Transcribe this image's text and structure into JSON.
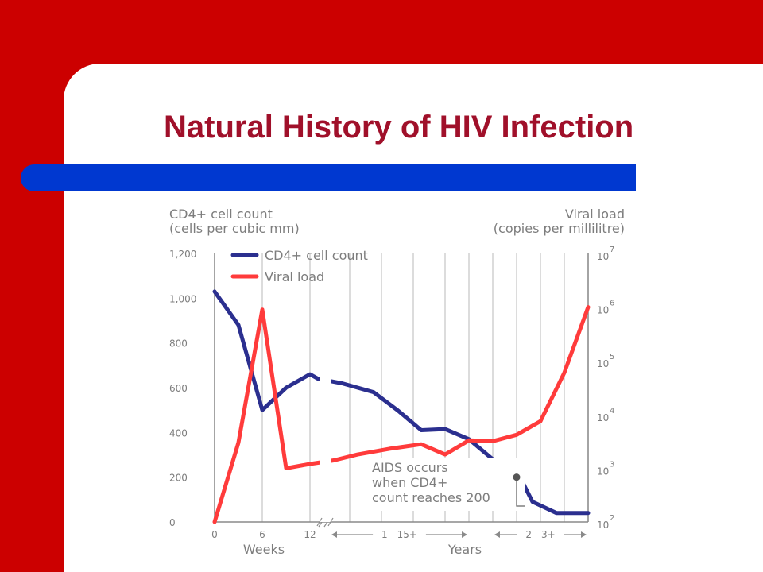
{
  "slide": {
    "title": "Natural History of HIV Infection",
    "colors": {
      "background": "#cc0000",
      "title": "#a0102a",
      "bar": "#0038d0"
    }
  },
  "chart_data": {
    "type": "line",
    "left_axis_label": [
      "CD4+ cell count",
      "(cells per cubic mm)"
    ],
    "right_axis_label": [
      "Viral load",
      "(copies per millilitre)"
    ],
    "left_ticks": [
      "1,200",
      "1,000",
      "800",
      "600",
      "400",
      "200",
      "0"
    ],
    "ylim_left": [
      0,
      1200
    ],
    "right_ticks": [
      {
        "base": "10",
        "exp": "7"
      },
      {
        "base": "10",
        "exp": "6"
      },
      {
        "base": "10",
        "exp": "5"
      },
      {
        "base": "10",
        "exp": "4"
      },
      {
        "base": "10",
        "exp": "3"
      },
      {
        "base": "10",
        "exp": "2"
      }
    ],
    "right_scale": "log",
    "ylim_right": [
      100,
      10000000
    ],
    "x_tick_labels": [
      "0",
      "6",
      "12"
    ],
    "x_range_labels": [
      "1 - 15+",
      "2 - 3+"
    ],
    "x_group_labels": [
      "Weeks",
      "Years"
    ],
    "grid": true,
    "legend": {
      "position": "top-left",
      "entries": [
        "CD4+ cell count",
        "Viral load"
      ]
    },
    "series": [
      {
        "name": "CD4+ cell count",
        "axis": "left",
        "color": "#2b2f8f",
        "points": [
          {
            "x": 0,
            "y": 1030
          },
          {
            "x": 3,
            "y": 880
          },
          {
            "x": 6,
            "y": 500
          },
          {
            "x": 9,
            "y": 600
          },
          {
            "x": 12,
            "y": 660
          },
          {
            "x": 13,
            "y": 640
          },
          {
            "x": 16,
            "y": 620
          },
          {
            "x": 20,
            "y": 580
          },
          {
            "x": 23,
            "y": 500
          },
          {
            "x": 26,
            "y": 410
          },
          {
            "x": 29,
            "y": 415
          },
          {
            "x": 32,
            "y": 370
          },
          {
            "x": 35,
            "y": 280
          },
          {
            "x": 38,
            "y": 230
          },
          {
            "x": 40,
            "y": 90
          },
          {
            "x": 43,
            "y": 40
          },
          {
            "x": 47,
            "y": 40
          }
        ]
      },
      {
        "name": "Viral load",
        "axis": "right",
        "color": "#ff3b3b",
        "points": [
          {
            "x": 0,
            "y": 100
          },
          {
            "x": 3,
            "y": 3000
          },
          {
            "x": 6,
            "y": 900000
          },
          {
            "x": 9,
            "y": 1000
          },
          {
            "x": 12,
            "y": 1200
          },
          {
            "x": 15,
            "y": 1400
          },
          {
            "x": 18,
            "y": 1800
          },
          {
            "x": 22,
            "y": 2300
          },
          {
            "x": 26,
            "y": 2800
          },
          {
            "x": 29,
            "y": 1800
          },
          {
            "x": 32,
            "y": 3300
          },
          {
            "x": 35,
            "y": 3200
          },
          {
            "x": 38,
            "y": 4200
          },
          {
            "x": 41,
            "y": 7500
          },
          {
            "x": 44,
            "y": 60000
          },
          {
            "x": 47,
            "y": 1000000
          }
        ]
      }
    ],
    "annotation": {
      "lines": [
        "AIDS occurs",
        "when CD4+",
        "count reaches 200"
      ],
      "x": 38,
      "y": 200
    }
  }
}
